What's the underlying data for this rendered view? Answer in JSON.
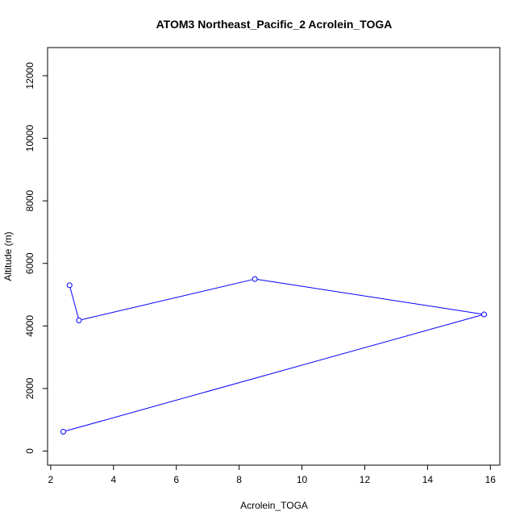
{
  "chart_data": {
    "type": "line",
    "title": "ATOM3 Northeast_Pacific_2 Acrolein_TOGA",
    "xlabel": "Acrolein_TOGA",
    "ylabel": "Altitude (m)",
    "xlim": [
      1.9,
      16.3
    ],
    "ylim": [
      -450,
      12900
    ],
    "xticks": [
      2,
      4,
      6,
      8,
      10,
      12,
      14,
      16
    ],
    "yticks": [
      0,
      2000,
      4000,
      6000,
      8000,
      10000,
      12000
    ],
    "series": [
      {
        "color": "#0000ff",
        "x": [
          2.6,
          2.9,
          8.5,
          15.8,
          2.4
        ],
        "y": [
          5300,
          4180,
          5500,
          4370,
          620
        ]
      }
    ],
    "grid": false,
    "marker": "open-circle"
  }
}
